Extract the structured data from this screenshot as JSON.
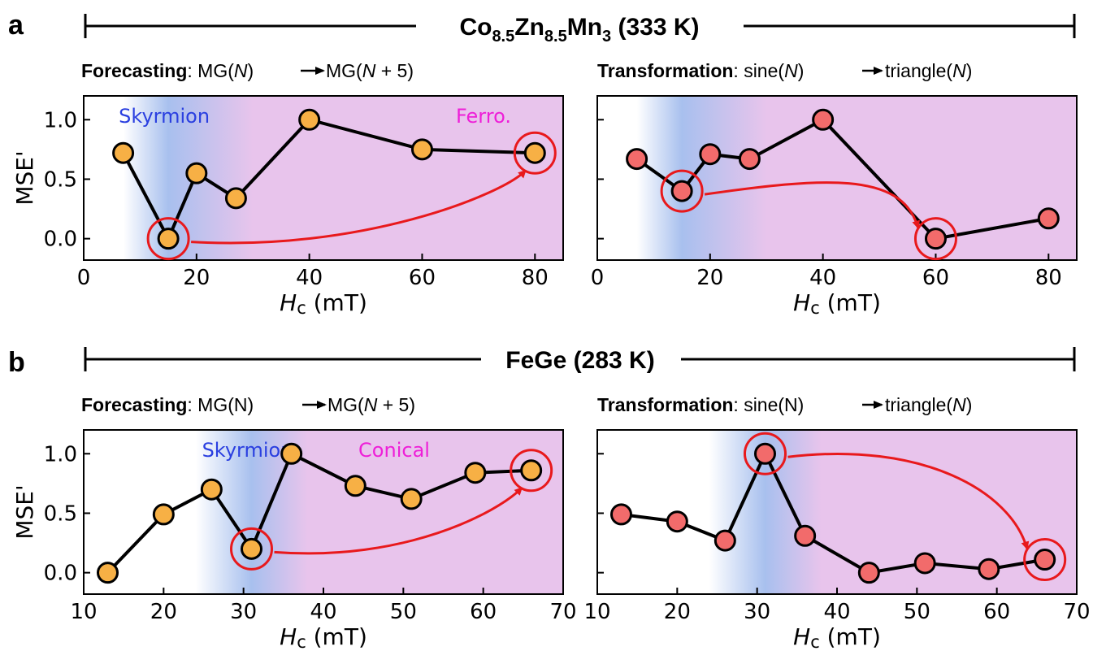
{
  "colors": {
    "ferro_bg": "#e8c4ec",
    "skyrmion_core": "#a8c0ee",
    "skyrmion_text": "#2a3fe0",
    "phase2_text": "#ee1fd8",
    "forecast_marker": "#f7b045",
    "transform_marker": "#f26b6b",
    "highlight": "#e8191c"
  },
  "panel_a": {
    "letter": "a",
    "material": {
      "prefix": "Co",
      "s1": "8.5",
      "mid": "Zn",
      "s2": "8.5",
      "mid2": "Mn",
      "s3": "3",
      "suffix": " (333 K)"
    }
  },
  "panel_b": {
    "letter": "b",
    "material": "FeGe (283 K)"
  },
  "common": {
    "ylabel": "MSE'",
    "xlabel_sym": "H",
    "xlabel_sub": "c",
    "xlabel_unit": " (mT)",
    "label_skyrmion": "Skyrmion",
    "label_ferro": "Ferro.",
    "label_conical": "Conical"
  },
  "subtitles": {
    "a_forecast": {
      "bold": "Forecasting",
      "a": ": MG(",
      "b": "N",
      "c": ")",
      "d": "MG(",
      "e": "N",
      "f": " + 5)"
    },
    "a_transform": {
      "bold": "Transformation",
      "a": ": sine(",
      "b": "N",
      "c": ")",
      "d": "triangle(",
      "e": "N",
      "f": ")"
    },
    "b_forecast": {
      "bold": "Forecasting",
      "a": ": MG(N)",
      "b": "",
      "c": "",
      "d": "MG(",
      "e": "N",
      "f": " + 5)"
    },
    "b_transform": {
      "bold": "Transformation",
      "a": ": sine(N)",
      "b": "",
      "c": "",
      "d": "triangle(",
      "e": "N",
      "f": ")"
    }
  },
  "chart_data": [
    {
      "type": "line",
      "panel": "a-left",
      "xlim": [
        0,
        85
      ],
      "ylim": [
        -0.18,
        1.2
      ],
      "xticks": [
        0,
        20,
        40,
        60,
        80
      ],
      "yticks": [
        0.0,
        0.5,
        1.0
      ],
      "ytick_labels": [
        "0.0",
        "0.5",
        "1.0"
      ],
      "show_ytick_labels": true,
      "x": [
        7,
        15,
        20,
        27,
        40,
        60,
        80
      ],
      "y": [
        0.72,
        0.0,
        0.55,
        0.34,
        1.0,
        0.75,
        0.72
      ],
      "highlight_from": 1,
      "highlight_to": 6,
      "skyrmion_range": [
        7,
        30
      ],
      "skyrmion_peak": 15
    },
    {
      "type": "line",
      "panel": "a-right",
      "xlim": [
        0,
        85
      ],
      "ylim": [
        -0.18,
        1.2
      ],
      "xticks": [
        0,
        20,
        40,
        60,
        80
      ],
      "yticks": [
        0.0,
        0.5,
        1.0
      ],
      "ytick_labels": [
        "0.0",
        "0.5",
        "1.0"
      ],
      "show_ytick_labels": false,
      "x": [
        7,
        15,
        20,
        27,
        40,
        60,
        80
      ],
      "y": [
        0.67,
        0.4,
        0.71,
        0.67,
        1.0,
        0.0,
        0.17
      ],
      "highlight_from": 1,
      "highlight_to": 5,
      "skyrmion_range": [
        7,
        30
      ],
      "skyrmion_peak": 15
    },
    {
      "type": "line",
      "panel": "b-left",
      "xlim": [
        10,
        70
      ],
      "ylim": [
        -0.18,
        1.2
      ],
      "xticks": [
        10,
        20,
        30,
        40,
        50,
        60,
        70
      ],
      "yticks": [
        0.0,
        0.5,
        1.0
      ],
      "ytick_labels": [
        "0.0",
        "0.5",
        "1.0"
      ],
      "show_ytick_labels": true,
      "x": [
        13,
        20,
        26,
        31,
        36,
        44,
        51,
        59,
        66
      ],
      "y": [
        0.0,
        0.49,
        0.7,
        0.2,
        1.0,
        0.73,
        0.62,
        0.84,
        0.86
      ],
      "highlight_from": 3,
      "highlight_to": 8,
      "skyrmion_range": [
        24,
        38
      ],
      "skyrmion_peak": 31
    },
    {
      "type": "line",
      "panel": "b-right",
      "xlim": [
        10,
        70
      ],
      "ylim": [
        -0.18,
        1.2
      ],
      "xticks": [
        10,
        20,
        30,
        40,
        50,
        60,
        70
      ],
      "yticks": [
        0.0,
        0.5,
        1.0
      ],
      "ytick_labels": [
        "0.0",
        "0.5",
        "1.0"
      ],
      "show_ytick_labels": false,
      "x": [
        13,
        20,
        26,
        31,
        36,
        44,
        51,
        59,
        66
      ],
      "y": [
        0.49,
        0.43,
        0.27,
        1.0,
        0.31,
        0.0,
        0.08,
        0.03,
        0.11
      ],
      "highlight_from": 3,
      "highlight_to": 8,
      "skyrmion_range": [
        24,
        38
      ],
      "skyrmion_peak": 31
    }
  ]
}
